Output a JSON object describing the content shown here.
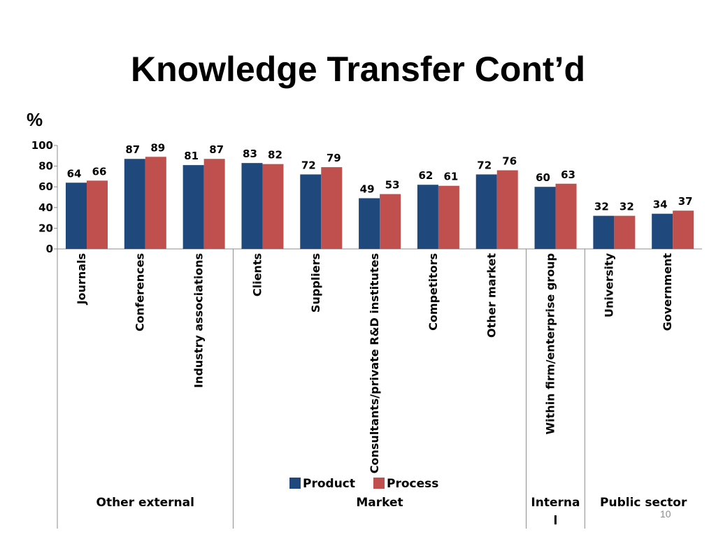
{
  "slide": {
    "title": "Knowledge Transfer Cont’d",
    "y_unit": "%",
    "page_number": "10"
  },
  "chart_data": {
    "type": "bar",
    "categories": [
      "Journals",
      "Conferences",
      "Industry associations",
      "Clients",
      "Suppliers",
      "Consultants/private R&D institutes",
      "Competitors",
      "Other market",
      "Within firm/enterprise group",
      "University",
      "Government"
    ],
    "groups": [
      {
        "label": "Other external",
        "categories": [
          "Journals",
          "Conferences",
          "Industry associations"
        ]
      },
      {
        "label": "Market",
        "categories": [
          "Clients",
          "Suppliers",
          "Consultants/private R&D institutes",
          "Competitors",
          "Other market"
        ]
      },
      {
        "label": "Internal",
        "categories": [
          "Within firm/enterprise group"
        ]
      },
      {
        "label": "Public sector",
        "categories": [
          "University",
          "Government"
        ]
      }
    ],
    "series": [
      {
        "name": "Product",
        "color": "#1F497D",
        "values": [
          64,
          87,
          81,
          83,
          72,
          49,
          62,
          72,
          60,
          32,
          34
        ]
      },
      {
        "name": "Process",
        "color": "#C0504D",
        "values": [
          66,
          89,
          87,
          82,
          79,
          53,
          61,
          76,
          63,
          32,
          37
        ]
      }
    ],
    "ylim": [
      0,
      100
    ],
    "yticks": [
      0,
      20,
      40,
      60,
      80,
      100
    ],
    "grid": false,
    "legend_placement": "bottom"
  }
}
